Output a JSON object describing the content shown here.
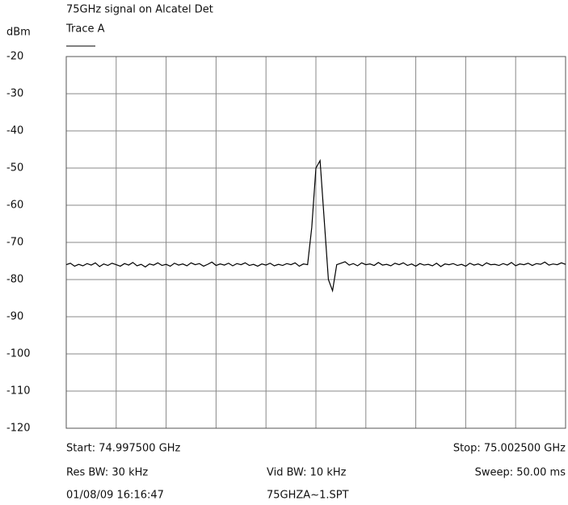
{
  "chart_data": {
    "type": "line",
    "title": "75GHz signal on Alcatel Det",
    "y_label": "dBm",
    "series": [
      {
        "name": "Trace A",
        "color": "#000000",
        "values": [
          -76,
          -75.6,
          -76.4,
          -75.9,
          -76.3,
          -75.7,
          -76.1,
          -75.5,
          -76.5,
          -75.8,
          -76.2,
          -75.6,
          -76,
          -76.4,
          -75.7,
          -76.1,
          -75.4,
          -76.3,
          -75.9,
          -76.6,
          -75.8,
          -76.1,
          -75.5,
          -76.2,
          -75.9,
          -76.4,
          -75.6,
          -76.1,
          -75.8,
          -76.3,
          -75.5,
          -76,
          -75.7,
          -76.4,
          -75.9,
          -75.3,
          -76.2,
          -75.8,
          -76.1,
          -75.6,
          -76.3,
          -75.7,
          -76,
          -75.5,
          -76.2,
          -75.9,
          -76.4,
          -75.8,
          -76.1,
          -75.6,
          -76.3,
          -75.9,
          -76.2,
          -75.7,
          -76,
          -75.5,
          -76.4,
          -75.8,
          -76,
          -66,
          -50,
          -48,
          -64,
          -80,
          -83,
          -76,
          -75.6,
          -75.2,
          -76.1,
          -75.7,
          -76.3,
          -75.5,
          -76,
          -75.8,
          -76.2,
          -75.4,
          -76.1,
          -75.9,
          -76.3,
          -75.6,
          -76,
          -75.5,
          -76.2,
          -75.8,
          -76.4,
          -75.7,
          -76.1,
          -75.9,
          -76.3,
          -75.6,
          -76.5,
          -75.8,
          -76,
          -75.7,
          -76.2,
          -75.9,
          -76.4,
          -75.6,
          -76.1,
          -75.8,
          -76.3,
          -75.5,
          -76,
          -75.9,
          -76.2,
          -75.7,
          -76.1,
          -75.4,
          -76.3,
          -75.8,
          -76,
          -75.6,
          -76.2,
          -75.7,
          -75.9,
          -75.3,
          -76.1,
          -75.8,
          -76,
          -75.5,
          -75.9
        ]
      }
    ],
    "ylim": [
      -120,
      -20
    ],
    "yticks": [
      -20,
      -30,
      -40,
      -50,
      -60,
      -70,
      -80,
      -90,
      -100,
      -110,
      -120
    ],
    "grid": true,
    "footer": {
      "start": "Start: 74.997500 GHz",
      "stop": "Stop: 75.002500 GHz",
      "res_bw": "Res BW: 30 kHz",
      "vid_bw": "Vid BW: 10 kHz",
      "sweep": "Sweep: 50.00 ms",
      "timestamp": "01/08/09 16:16:47",
      "file": "75GHZA~1.SPT"
    }
  }
}
